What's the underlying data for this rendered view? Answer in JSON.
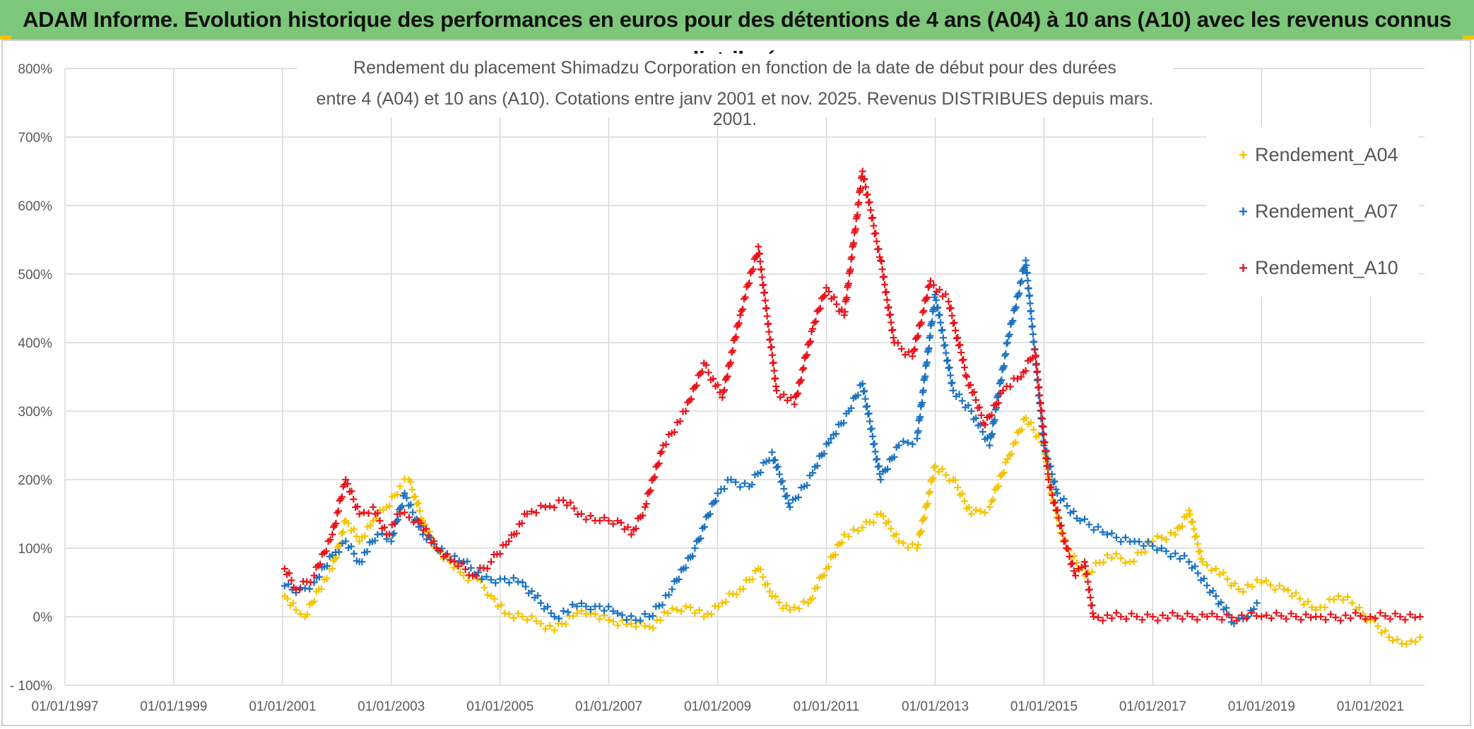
{
  "banner": {
    "title": "ADAM Informe. Evolution historique des performances en euros pour des détentions de 4 ans (A04) à 10 ans (A10) avec les revenus connus distribués"
  },
  "chart_data": {
    "type": "scatter",
    "title_line1": "Rendement du placement Shimadzu Corporation en fonction de la date de début pour des durées",
    "title_line2": "entre 4 (A04) et 10 ans (A10). Cotations entre janv 2001 et nov. 2025. Revenus DISTRIBUES depuis mars. 2001.",
    "xlabel": "",
    "ylabel": "",
    "x_ticks": [
      "01/01/1997",
      "01/01/1999",
      "01/01/2001",
      "01/01/2003",
      "01/01/2005",
      "01/01/2007",
      "01/01/2009",
      "01/01/2011",
      "01/01/2013",
      "01/01/2015",
      "01/01/2017",
      "01/01/2019",
      "01/01/2021"
    ],
    "y_ticks": [
      "- 100%",
      "0%",
      "100%",
      "200%",
      "300%",
      "400%",
      "500%",
      "600%",
      "700%",
      "800%"
    ],
    "xlim": [
      "1997-01-01",
      "2021-12-31"
    ],
    "ylim": [
      -100,
      800
    ],
    "grid": true,
    "legend_position": "top-right",
    "marker": "+",
    "series": [
      {
        "name": "Rendement_A04",
        "color": "#f5c400",
        "points": [
          [
            "2001-01-15",
            30
          ],
          [
            "2001-04-01",
            10
          ],
          [
            "2001-06-01",
            0
          ],
          [
            "2001-09-01",
            40
          ],
          [
            "2001-12-01",
            70
          ],
          [
            "2002-03-01",
            140
          ],
          [
            "2002-06-01",
            110
          ],
          [
            "2002-09-01",
            140
          ],
          [
            "2002-12-01",
            160
          ],
          [
            "2003-03-01",
            190
          ],
          [
            "2003-05-01",
            200
          ],
          [
            "2003-08-01",
            140
          ],
          [
            "2003-11-01",
            100
          ],
          [
            "2004-02-01",
            80
          ],
          [
            "2004-05-01",
            60
          ],
          [
            "2004-08-01",
            55
          ],
          [
            "2004-11-01",
            30
          ],
          [
            "2005-02-01",
            5
          ],
          [
            "2005-06-01",
            0
          ],
          [
            "2005-10-01",
            -10
          ],
          [
            "2006-01-01",
            -20
          ],
          [
            "2006-06-01",
            5
          ],
          [
            "2006-09-01",
            5
          ],
          [
            "2007-01-01",
            -5
          ],
          [
            "2007-06-01",
            -10
          ],
          [
            "2007-10-01",
            -15
          ],
          [
            "2008-02-01",
            5
          ],
          [
            "2008-06-01",
            15
          ],
          [
            "2008-10-01",
            0
          ],
          [
            "2009-02-01",
            20
          ],
          [
            "2009-06-01",
            40
          ],
          [
            "2009-10-01",
            70
          ],
          [
            "2010-01-01",
            30
          ],
          [
            "2010-05-01",
            10
          ],
          [
            "2010-09-01",
            20
          ],
          [
            "2011-01-01",
            70
          ],
          [
            "2011-05-01",
            120
          ],
          [
            "2011-09-01",
            130
          ],
          [
            "2012-01-01",
            150
          ],
          [
            "2012-05-01",
            110
          ],
          [
            "2012-09-01",
            100
          ],
          [
            "2013-01-01",
            220
          ],
          [
            "2013-05-01",
            200
          ],
          [
            "2013-09-01",
            150
          ],
          [
            "2014-01-01",
            160
          ],
          [
            "2014-05-01",
            230
          ],
          [
            "2014-09-01",
            290
          ],
          [
            "2015-01-01",
            250
          ],
          [
            "2015-03-01",
            170
          ],
          [
            "2015-06-01",
            100
          ],
          [
            "2015-10-01",
            60
          ],
          [
            "2016-03-01",
            90
          ],
          [
            "2016-08-01",
            80
          ],
          [
            "2017-01-01",
            110
          ],
          [
            "2017-06-01",
            120
          ],
          [
            "2017-09-01",
            155
          ],
          [
            "2017-12-01",
            80
          ],
          [
            "2018-03-01",
            70
          ],
          [
            "2018-08-01",
            40
          ],
          [
            "2019-01-01",
            50
          ],
          [
            "2019-06-01",
            40
          ],
          [
            "2020-01-01",
            10
          ],
          [
            "2020-06-01",
            30
          ],
          [
            "2020-09-01",
            20
          ],
          [
            "2021-01-01",
            -5
          ],
          [
            "2021-06-01",
            -35
          ],
          [
            "2021-09-01",
            -40
          ],
          [
            "2021-12-01",
            -30
          ]
        ]
      },
      {
        "name": "Rendement_A07",
        "color": "#1a73c0",
        "points": [
          [
            "2001-01-15",
            45
          ],
          [
            "2001-04-01",
            35
          ],
          [
            "2001-08-01",
            50
          ],
          [
            "2001-12-01",
            90
          ],
          [
            "2002-03-01",
            110
          ],
          [
            "2002-06-01",
            80
          ],
          [
            "2002-10-01",
            120
          ],
          [
            "2003-01-01",
            110
          ],
          [
            "2003-04-01",
            180
          ],
          [
            "2003-08-01",
            120
          ],
          [
            "2004-01-01",
            90
          ],
          [
            "2004-05-01",
            80
          ],
          [
            "2004-09-01",
            55
          ],
          [
            "2005-01-01",
            55
          ],
          [
            "2005-06-01",
            50
          ],
          [
            "2005-10-01",
            20
          ],
          [
            "2006-01-01",
            0
          ],
          [
            "2006-06-01",
            15
          ],
          [
            "2006-10-01",
            15
          ],
          [
            "2007-03-01",
            5
          ],
          [
            "2007-07-01",
            -5
          ],
          [
            "2007-10-01",
            0
          ],
          [
            "2008-03-01",
            40
          ],
          [
            "2008-08-01",
            100
          ],
          [
            "2009-01-01",
            180
          ],
          [
            "2009-04-01",
            200
          ],
          [
            "2009-08-01",
            190
          ],
          [
            "2010-01-01",
            240
          ],
          [
            "2010-05-01",
            160
          ],
          [
            "2010-10-01",
            210
          ],
          [
            "2011-02-01",
            260
          ],
          [
            "2011-06-01",
            300
          ],
          [
            "2011-09-01",
            340
          ],
          [
            "2012-01-01",
            200
          ],
          [
            "2012-05-01",
            250
          ],
          [
            "2012-09-01",
            260
          ],
          [
            "2013-01-01",
            470
          ],
          [
            "2013-05-01",
            330
          ],
          [
            "2013-09-01",
            300
          ],
          [
            "2014-01-01",
            250
          ],
          [
            "2014-05-01",
            400
          ],
          [
            "2014-09-01",
            520
          ],
          [
            "2015-01-01",
            250
          ],
          [
            "2015-04-01",
            180
          ],
          [
            "2015-09-01",
            140
          ],
          [
            "2016-03-01",
            120
          ],
          [
            "2016-09-01",
            110
          ],
          [
            "2017-03-01",
            100
          ],
          [
            "2017-09-01",
            80
          ],
          [
            "2018-03-01",
            30
          ],
          [
            "2018-07-01",
            -10
          ],
          [
            "2018-10-01",
            0
          ],
          [
            "2018-12-01",
            20
          ]
        ]
      },
      {
        "name": "Rendement_A10",
        "color": "#e8141c",
        "points": [
          [
            "2001-01-15",
            70
          ],
          [
            "2001-04-01",
            40
          ],
          [
            "2001-08-01",
            60
          ],
          [
            "2001-12-01",
            120
          ],
          [
            "2002-03-01",
            200
          ],
          [
            "2002-06-01",
            150
          ],
          [
            "2002-09-01",
            160
          ],
          [
            "2002-12-01",
            120
          ],
          [
            "2003-03-01",
            150
          ],
          [
            "2003-07-01",
            140
          ],
          [
            "2003-11-01",
            100
          ],
          [
            "2004-03-01",
            80
          ],
          [
            "2004-07-01",
            60
          ],
          [
            "2004-11-01",
            80
          ],
          [
            "2005-03-01",
            110
          ],
          [
            "2005-07-01",
            150
          ],
          [
            "2005-11-01",
            160
          ],
          [
            "2006-03-01",
            170
          ],
          [
            "2006-07-01",
            150
          ],
          [
            "2006-11-01",
            140
          ],
          [
            "2007-03-01",
            140
          ],
          [
            "2007-06-01",
            120
          ],
          [
            "2007-09-01",
            160
          ],
          [
            "2008-01-01",
            250
          ],
          [
            "2008-06-01",
            300
          ],
          [
            "2008-10-01",
            370
          ],
          [
            "2009-02-01",
            320
          ],
          [
            "2009-06-01",
            440
          ],
          [
            "2009-10-01",
            540
          ],
          [
            "2010-02-01",
            330
          ],
          [
            "2010-06-01",
            310
          ],
          [
            "2010-10-01",
            420
          ],
          [
            "2011-01-01",
            480
          ],
          [
            "2011-05-01",
            440
          ],
          [
            "2011-09-01",
            650
          ],
          [
            "2012-01-01",
            520
          ],
          [
            "2012-04-01",
            400
          ],
          [
            "2012-08-01",
            380
          ],
          [
            "2012-12-01",
            490
          ],
          [
            "2013-04-01",
            460
          ],
          [
            "2013-08-01",
            350
          ],
          [
            "2013-12-01",
            280
          ],
          [
            "2014-04-01",
            330
          ],
          [
            "2014-08-01",
            350
          ],
          [
            "2014-11-01",
            390
          ],
          [
            "2015-02-01",
            200
          ],
          [
            "2015-06-01",
            100
          ],
          [
            "2015-08-01",
            60
          ],
          [
            "2015-10-01",
            80
          ],
          [
            "2015-12-01",
            0
          ],
          [
            "2016-06-01",
            0
          ],
          [
            "2017-01-01",
            0
          ],
          [
            "2018-01-01",
            0
          ],
          [
            "2019-01-01",
            0
          ],
          [
            "2020-01-01",
            0
          ],
          [
            "2021-01-01",
            0
          ],
          [
            "2021-12-01",
            0
          ]
        ]
      }
    ]
  }
}
